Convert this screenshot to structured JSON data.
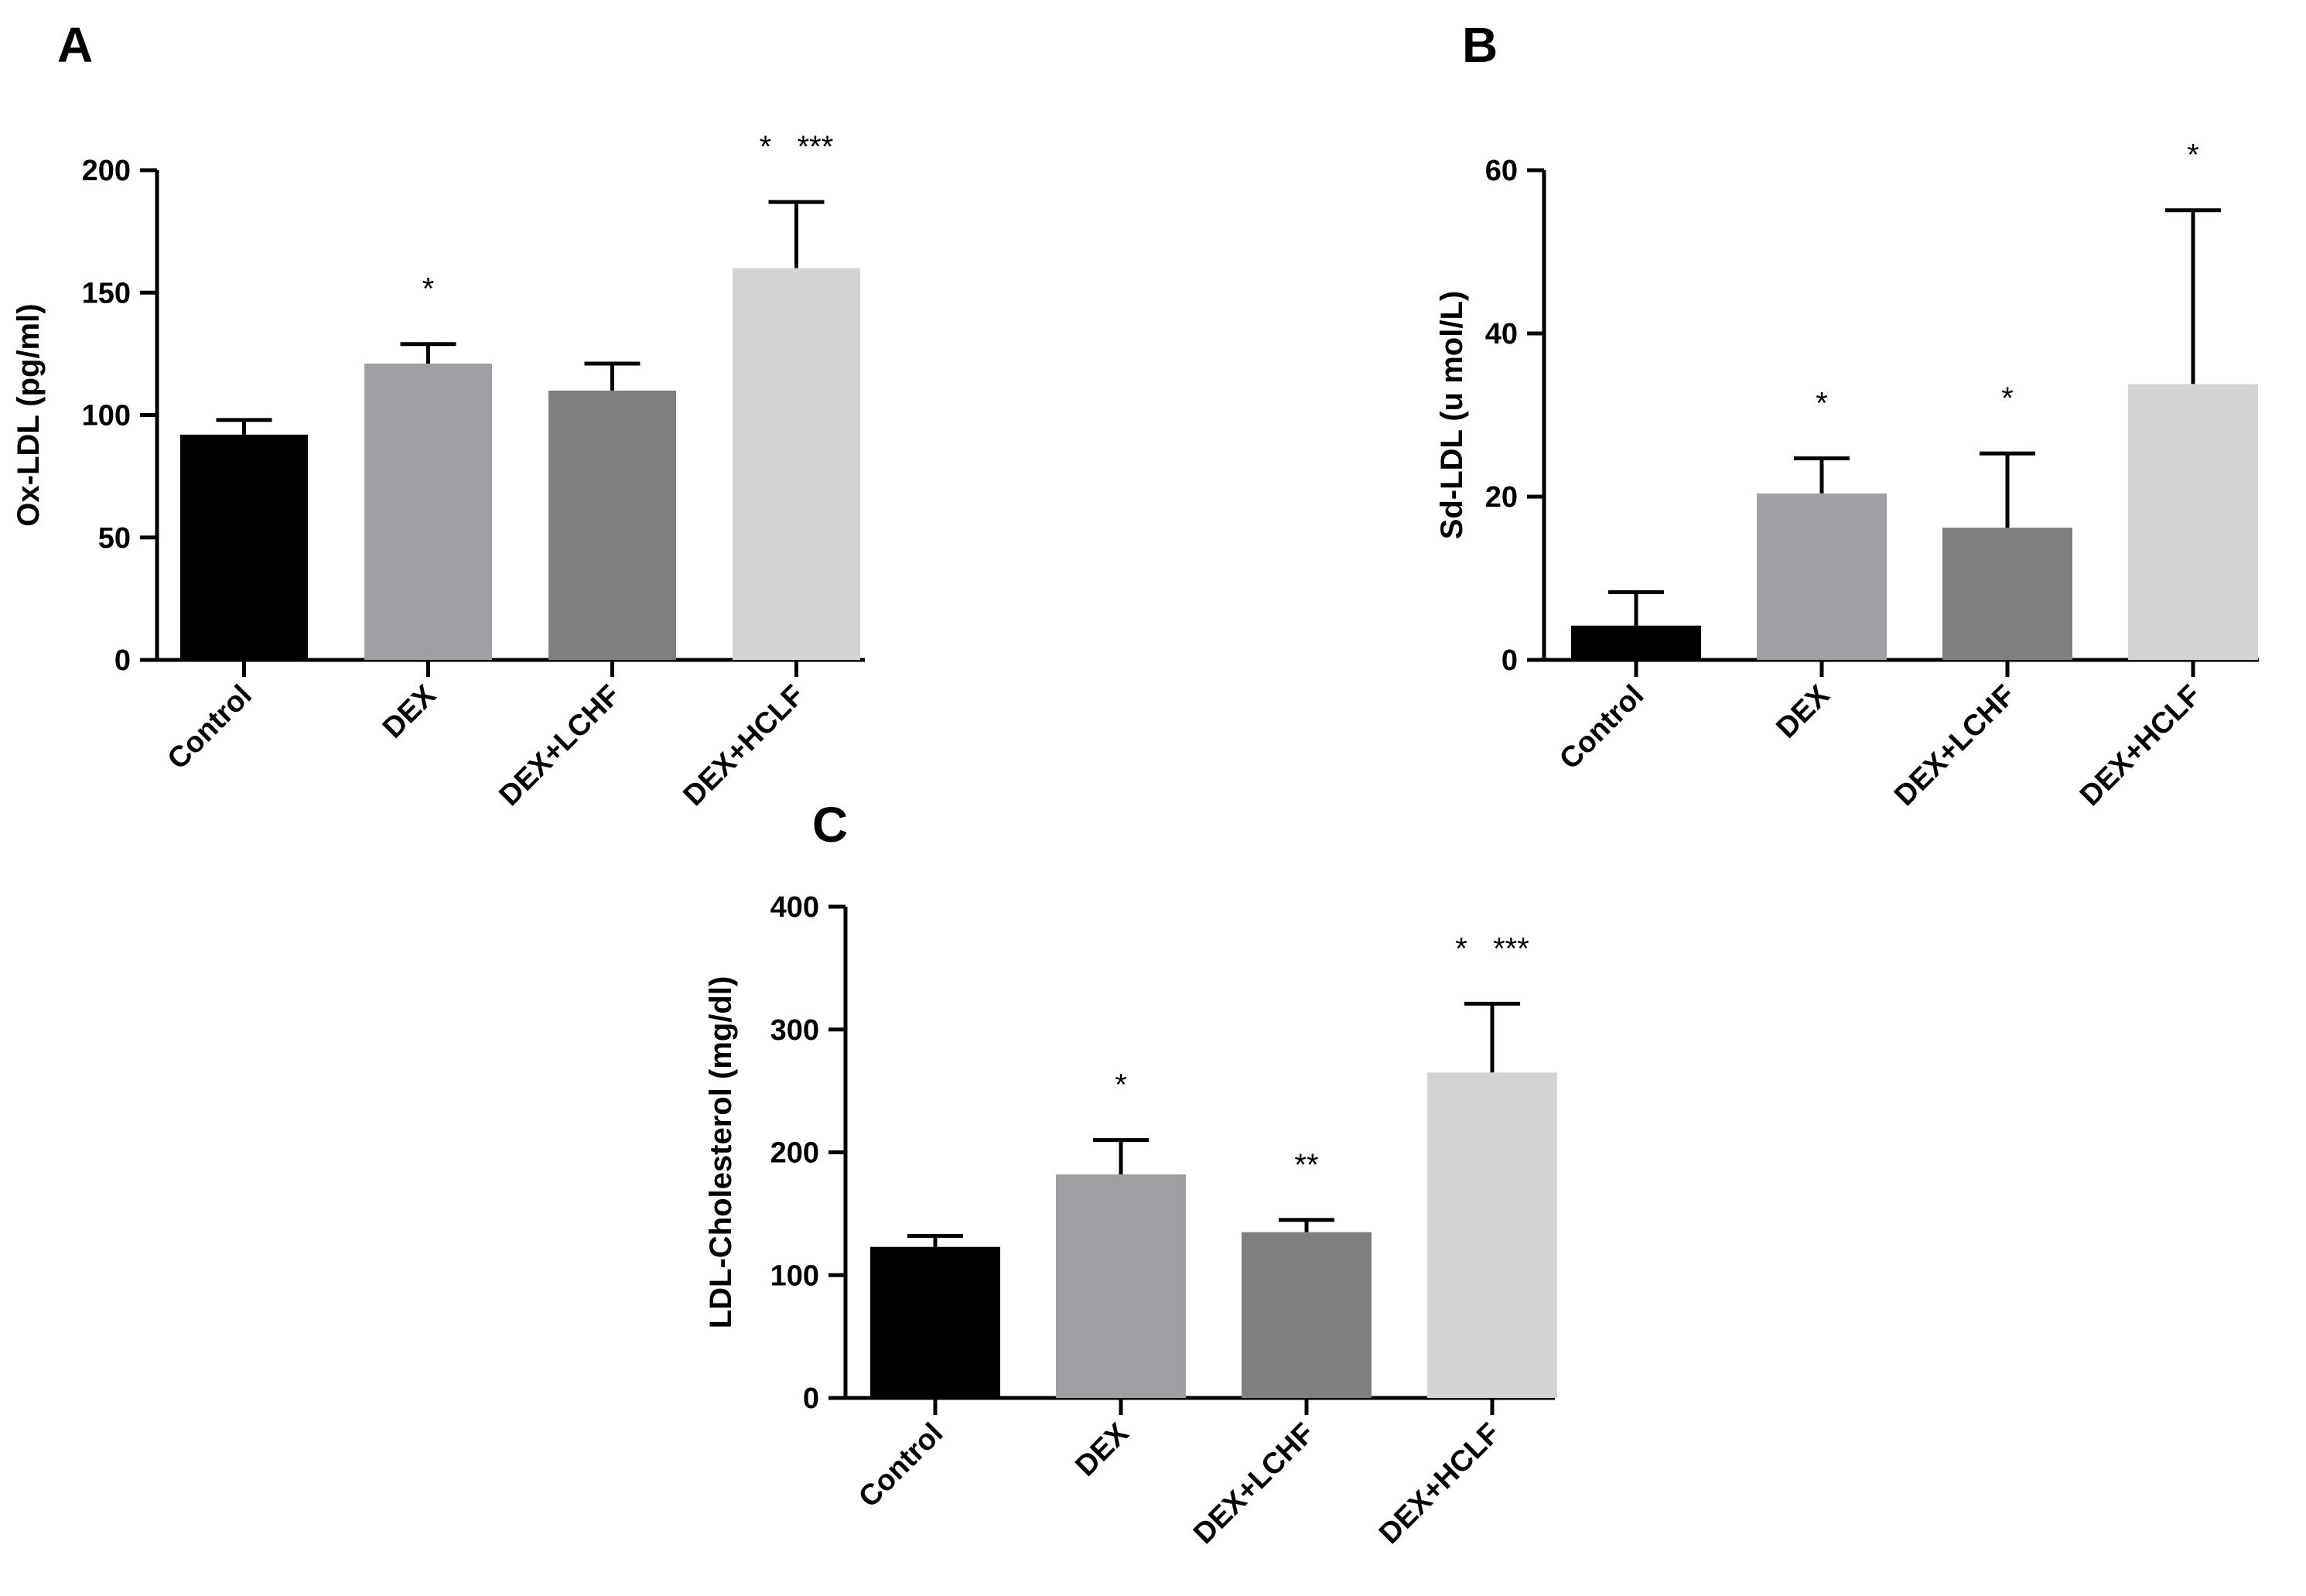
{
  "chart_data": [
    {
      "panel": "A",
      "type": "bar",
      "title": "",
      "xlabel": "",
      "ylabel": "Ox-LDL (pg/ml)",
      "ylim": [
        0,
        200
      ],
      "yticks": [
        0,
        50,
        100,
        150,
        200
      ],
      "categories": [
        "Control",
        "DEX",
        "DEX+LCHF",
        "DEX+HCLF"
      ],
      "values": [
        92,
        121,
        110,
        160
      ],
      "errors": [
        6,
        8,
        11,
        27
      ],
      "annotations": [
        "",
        "*",
        "",
        "*   ***"
      ],
      "colors": [
        "#000000",
        "#a0a0a4",
        "#7f7f7f",
        "#d4d4d4"
      ]
    },
    {
      "panel": "B",
      "type": "bar",
      "title": "",
      "xlabel": "",
      "ylabel": "Sd-LDL  (u mol/L)",
      "ylim": [
        0,
        60
      ],
      "yticks": [
        0,
        20,
        40,
        60
      ],
      "categories": [
        "Control",
        "DEX",
        "DEX+LCHF",
        "DEX+HCLF"
      ],
      "values": [
        4.2,
        20.4,
        16.2,
        33.8
      ],
      "errors": [
        4.1,
        4.3,
        9.1,
        21.3
      ],
      "annotations": [
        "",
        "*",
        "*",
        "*"
      ],
      "colors": [
        "#000000",
        "#a0a0a4",
        "#7f7f7f",
        "#d4d4d4"
      ]
    },
    {
      "panel": "C",
      "type": "bar",
      "title": "",
      "xlabel": "",
      "ylabel": "LDL-Cholesterol (mg/dl)",
      "ylim": [
        0,
        400
      ],
      "yticks": [
        0,
        100,
        200,
        300,
        400
      ],
      "categories": [
        "Control",
        "DEX",
        "DEX+LCHF",
        "DEX+HCLF"
      ],
      "values": [
        123,
        182,
        135,
        265
      ],
      "errors": [
        9,
        28,
        10,
        56
      ],
      "annotations": [
        "",
        "*",
        "**",
        "*   ***"
      ],
      "colors": [
        "#000000",
        "#a0a0a4",
        "#7f7f7f",
        "#d4d4d4"
      ]
    }
  ]
}
